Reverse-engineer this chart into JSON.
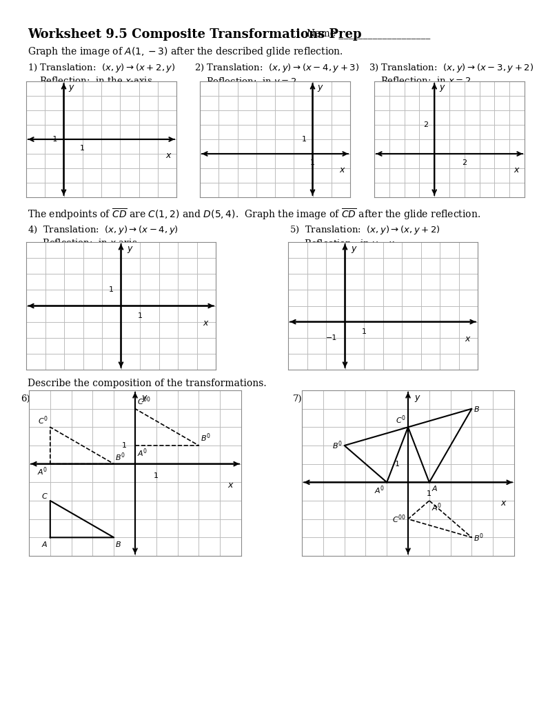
{
  "bg_color": "#ffffff",
  "grid_color": "#bbbbbb",
  "axis_color": "#000000",
  "title_bold": "Worksheet 9.5 Composite Transformations Prep",
  "title_name": "Name ___________________",
  "subtitle": "Graph the image of $A(1,-3)$ after the described glide reflection.",
  "p1_t": "1) Translation:  $(x, y) \\rightarrow (x+2, y)$",
  "p1_r": "Reflection:  in the $x$-axis",
  "p2_t": "2) Translation:  $(x, y) \\rightarrow (x-4, y+3)$",
  "p2_r": "Reflection:  in $y=2$",
  "p3_t": "3) Translation:  $(x, y) \\rightarrow (x-3, y+2)$",
  "p3_r": "Reflection:  in $x=2$",
  "section2": "The endpoints of $\\overline{CD}$ are $C(1,2)$ and $D(5,4)$.  Graph the image of $\\overline{CD}$ after the glide reflection.",
  "p4_t": "4)  Translation:  $(x, y) \\rightarrow (x-4, y)$",
  "p4_r": "     Reflection:  in $x$-axis",
  "p5_t": "5)  Translation:  $(x, y) \\rightarrow (x, y+2)$",
  "p5_r": "     Reflection:  in $y=x$",
  "section3": "Describe the composition of the transformations."
}
